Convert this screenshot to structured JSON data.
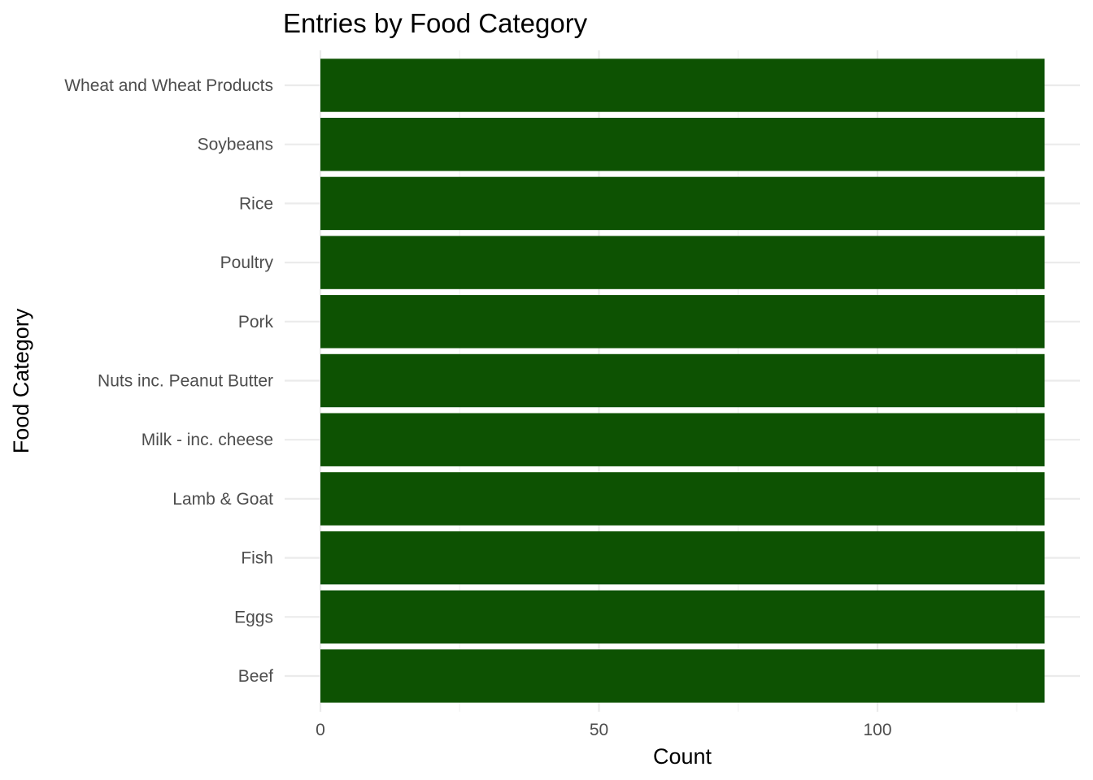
{
  "chart_data": {
    "type": "bar",
    "orientation": "horizontal",
    "title": "Entries by Food Category",
    "xlabel": "Count",
    "ylabel": "Food Category",
    "categories": [
      "Beef",
      "Eggs",
      "Fish",
      "Lamb & Goat",
      "Milk - inc. cheese",
      "Nuts inc. Peanut Butter",
      "Pork",
      "Poultry",
      "Rice",
      "Soybeans",
      "Wheat and Wheat Products"
    ],
    "values": [
      130,
      130,
      130,
      130,
      130,
      130,
      130,
      130,
      130,
      130,
      130
    ],
    "xlim": [
      0,
      130
    ],
    "xticks": [
      0,
      50,
      100
    ],
    "xtick_labels": [
      "0",
      "50",
      "100"
    ],
    "grid": true,
    "legend": "none",
    "bar_color": "#0d5202"
  }
}
